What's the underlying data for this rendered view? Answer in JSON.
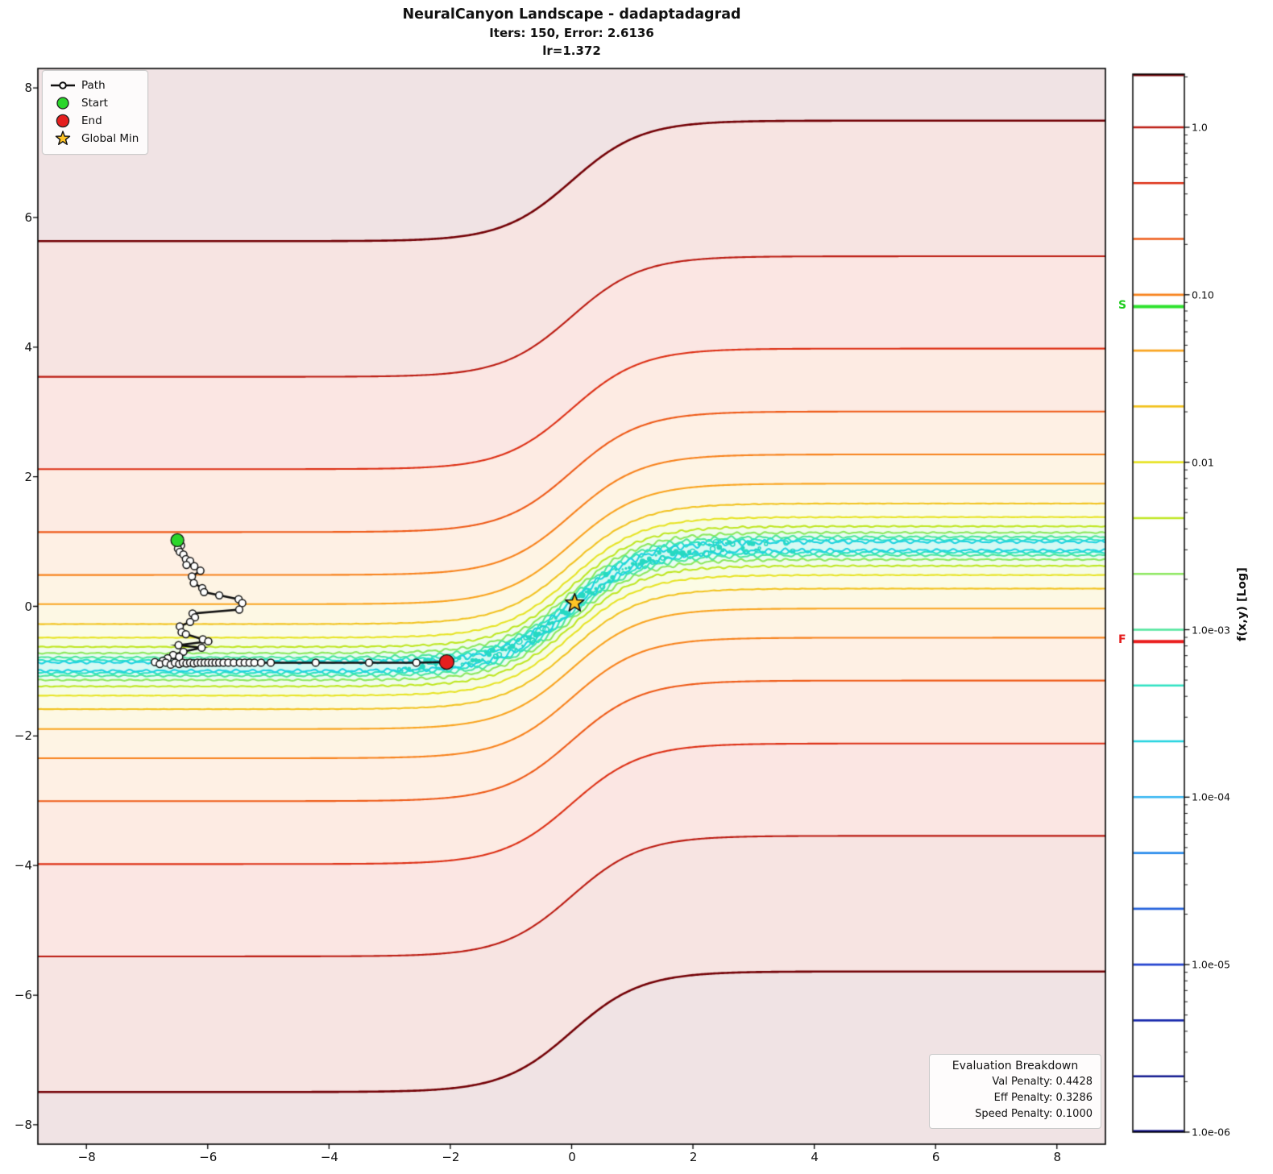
{
  "title": {
    "line1": "NeuralCanyon Landscape - dadaptadagrad",
    "line2": "Iters: 150, Error: 2.6136",
    "line3": "lr=1.372"
  },
  "legend": {
    "items": [
      {
        "label": "Path"
      },
      {
        "label": "Start",
        "color": "#2bd62b"
      },
      {
        "label": "End",
        "color": "#e51f1f"
      },
      {
        "label": "Global Min",
        "color": "#ffc425"
      }
    ]
  },
  "eval_box": {
    "title": "Evaluation Breakdown",
    "items": [
      "Val Penalty: 0.4428",
      "Eff Penalty: 0.3286",
      "Speed Penalty: 0.1000"
    ]
  },
  "colorbar": {
    "label": "f(x,y) [Log]",
    "tick_labels": [
      "1.0",
      "0.10",
      "0.01",
      "1.0e-03",
      "1.0e-04",
      "1.0e-05",
      "1.0e-06"
    ],
    "start_marker": {
      "label": "S",
      "value": 0.085,
      "color": "#1ecc1e"
    },
    "final_marker": {
      "label": "F",
      "value": 0.00085,
      "color": "#e51b1b"
    }
  },
  "chart_data": {
    "type": "contour",
    "title": "NeuralCanyon Landscape - dadaptadagrad",
    "subtitle": "Iters: 150, Error: 2.6136, lr=1.372",
    "x_range": [
      -8.8,
      8.8
    ],
    "y_range": [
      -8.3,
      8.3
    ],
    "x_ticks": [
      -8,
      -6,
      -4,
      -2,
      0,
      2,
      4,
      6,
      8
    ],
    "y_ticks": [
      -8,
      -6,
      -4,
      -2,
      0,
      2,
      4,
      6,
      8
    ],
    "x_tick_labels": [
      "−8",
      "−6",
      "−4",
      "−2",
      "0",
      "2",
      "4",
      "6",
      "8"
    ],
    "y_tick_labels": [
      "8",
      "6",
      "4",
      "2",
      "0",
      "−2",
      "−4",
      "−6",
      "−8"
    ],
    "grid": false,
    "scale": "log",
    "canyon_curve": {
      "type": "tanh",
      "amplitude": 0.93,
      "x_scale": 1.15
    },
    "function_approx": "f(x,y) = 0.05*(y - 0.93*tanh(x/1.15))^2",
    "levels": [
      {
        "value": 2.154,
        "offset": 6.565,
        "color": "#730005",
        "wiggle": 0
      },
      {
        "value": 1.0,
        "offset": 4.472,
        "color": "#bb1a10",
        "wiggle": 0
      },
      {
        "value": 0.4642,
        "offset": 3.047,
        "color": "#dd2f14",
        "wiggle": 0
      },
      {
        "value": 0.2154,
        "offset": 2.076,
        "color": "#ee5a17",
        "wiggle": 0
      },
      {
        "value": 0.1,
        "offset": 1.414,
        "color": "#f8821c",
        "wiggle": 0
      },
      {
        "value": 0.04642,
        "offset": 0.9635,
        "color": "#f9a41f",
        "wiggle": 0
      },
      {
        "value": 0.02154,
        "offset": 0.6565,
        "color": "#f2c322",
        "wiggle": 0.004
      },
      {
        "value": 0.01,
        "offset": 0.4472,
        "color": "#e7e426",
        "wiggle": 0.007
      },
      {
        "value": 0.004642,
        "offset": 0.3047,
        "color": "#bfe723",
        "wiggle": 0.013
      },
      {
        "value": 0.002154,
        "offset": 0.2076,
        "color": "#8ce85e",
        "wiggle": 0.019
      },
      {
        "value": 0.001,
        "offset": 0.1414,
        "color": "#50e69d",
        "wiggle": 0.026
      },
      {
        "value": 0.0004642,
        "offset": 0.0963,
        "color": "#2fe2c3",
        "wiggle": 0.031
      },
      {
        "value": 0.0002154,
        "offset": 0.0656,
        "color": "#1fd3e0",
        "wiggle": 0.035
      },
      {
        "value": 0.0001,
        "offset": 0.0447,
        "color": "#35b5f2",
        "wiggle": 0
      },
      {
        "value": 4.642e-05,
        "offset": 0.0305,
        "color": "#2a8cec",
        "wiggle": 0
      },
      {
        "value": 2.154e-05,
        "offset": 0.0208,
        "color": "#2562dc",
        "wiggle": 0
      },
      {
        "value": 1e-05,
        "offset": 0.0141,
        "color": "#2343cf",
        "wiggle": 0
      },
      {
        "value": 4.642e-06,
        "offset": 0.0096,
        "color": "#1a2cae",
        "wiggle": 0
      },
      {
        "value": 2.154e-06,
        "offset": 0.0066,
        "color": "#11198f",
        "wiggle": 0
      },
      {
        "value": 1e-06,
        "offset": 0.0045,
        "color": "#000083",
        "wiggle": 0
      }
    ],
    "plot_line_count": 13,
    "speckle_color": "#26d9c2",
    "path": {
      "color": "#111111",
      "points": [
        [
          -6.5,
          1.02
        ],
        [
          -6.44,
          0.94
        ],
        [
          -6.49,
          0.89
        ],
        [
          -6.46,
          0.84
        ],
        [
          -6.4,
          0.8
        ],
        [
          -6.36,
          0.73
        ],
        [
          -6.29,
          0.7
        ],
        [
          -6.35,
          0.64
        ],
        [
          -6.22,
          0.62
        ],
        [
          -6.12,
          0.55
        ],
        [
          -6.26,
          0.46
        ],
        [
          -6.23,
          0.36
        ],
        [
          -6.09,
          0.28
        ],
        [
          -6.06,
          0.22
        ],
        [
          -5.81,
          0.17
        ],
        [
          -5.49,
          0.11
        ],
        [
          -5.43,
          0.05
        ],
        [
          -5.48,
          -0.05
        ],
        [
          -6.25,
          -0.11
        ],
        [
          -6.21,
          -0.17
        ],
        [
          -6.29,
          -0.24
        ],
        [
          -6.46,
          -0.31
        ],
        [
          -6.43,
          -0.4
        ],
        [
          -6.36,
          -0.43
        ],
        [
          -6.08,
          -0.51
        ],
        [
          -5.99,
          -0.54
        ],
        [
          -6.48,
          -0.6
        ],
        [
          -6.1,
          -0.64
        ],
        [
          -6.4,
          -0.7
        ],
        [
          -6.57,
          -0.75
        ],
        [
          -6.47,
          -0.78
        ],
        [
          -6.66,
          -0.8
        ],
        [
          -6.74,
          -0.84
        ],
        [
          -6.87,
          -0.86
        ],
        [
          -6.79,
          -0.89
        ],
        [
          -6.69,
          -0.87
        ],
        [
          -6.61,
          -0.9
        ],
        [
          -6.54,
          -0.87
        ],
        [
          -6.47,
          -0.89
        ],
        [
          -6.41,
          -0.87
        ],
        [
          -6.35,
          -0.88
        ],
        [
          -6.29,
          -0.87
        ],
        [
          -6.23,
          -0.88
        ],
        [
          -6.17,
          -0.87
        ],
        [
          -6.11,
          -0.87
        ],
        [
          -6.05,
          -0.87
        ],
        [
          -5.99,
          -0.87
        ],
        [
          -5.93,
          -0.87
        ],
        [
          -5.87,
          -0.87
        ],
        [
          -5.81,
          -0.87
        ],
        [
          -5.74,
          -0.87
        ],
        [
          -5.66,
          -0.87
        ],
        [
          -5.57,
          -0.87
        ],
        [
          -5.47,
          -0.87
        ],
        [
          -5.39,
          -0.87
        ],
        [
          -5.31,
          -0.87
        ],
        [
          -5.23,
          -0.87
        ],
        [
          -5.12,
          -0.87
        ],
        [
          -4.96,
          -0.87
        ],
        [
          -4.22,
          -0.87
        ],
        [
          -3.34,
          -0.87
        ],
        [
          -2.56,
          -0.87
        ],
        [
          -2.06,
          -0.86
        ]
      ]
    },
    "markers": {
      "start": {
        "x": -6.5,
        "y": 1.02,
        "color": "#2bd62b"
      },
      "end": {
        "x": -2.06,
        "y": -0.86,
        "color": "#e51f1f"
      },
      "global_min": {
        "x": 0.05,
        "y": 0.05,
        "color": "#ffc425"
      }
    }
  }
}
